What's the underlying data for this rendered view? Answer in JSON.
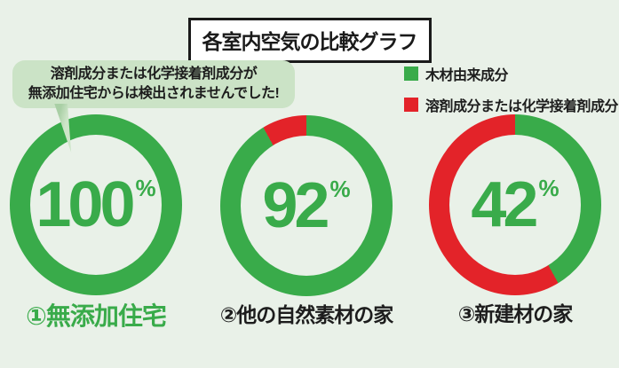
{
  "page": {
    "background": "#e9f1e8"
  },
  "chart_data": {
    "type": "pie",
    "title": "各室内空気の比較グラフ",
    "unit": "%",
    "legend_position": "top-right",
    "annotation": {
      "lines": [
        "溶剤成分または化学接着剤成分が",
        "無添加住宅からは検出されませんでした!"
      ],
      "bg_color": "#cbe3c6"
    },
    "legend": [
      {
        "label": "木材由来成分",
        "color": "#39ab4a"
      },
      {
        "label": "溶剤成分または化学接着剤成分",
        "color": "#e32329"
      }
    ],
    "charts": [
      {
        "caption": "①無添加住宅",
        "caption_color": "#39ab4a",
        "value": 100,
        "slices": [
          {
            "name": "木材由来成分",
            "pct": 100
          },
          {
            "name": "溶剤成分または化学接着剤成分",
            "pct": 0
          }
        ]
      },
      {
        "caption": "②他の自然素材の家",
        "caption_color": "#1d1d1d",
        "value": 92,
        "slices": [
          {
            "name": "木材由来成分",
            "pct": 92
          },
          {
            "name": "溶剤成分または化学接着剤成分",
            "pct": 8
          }
        ]
      },
      {
        "caption": "③新建材の家",
        "caption_color": "#1d1d1d",
        "value": 42,
        "slices": [
          {
            "name": "木材由来成分",
            "pct": 42
          },
          {
            "name": "溶剤成分または化学接着剤成分",
            "pct": 58
          }
        ]
      }
    ]
  }
}
